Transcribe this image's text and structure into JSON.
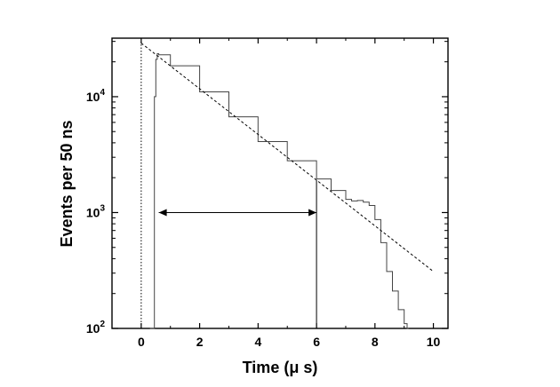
{
  "chart_data": {
    "type": "line",
    "title": "",
    "xlabel": "Time (μ s)",
    "ylabel": "Events per 50 ns",
    "xlim": [
      -1,
      10.5
    ],
    "ylim": [
      100,
      32000
    ],
    "y_scale": "log",
    "grid": false,
    "legend": "none",
    "x_ticks": [
      0,
      2,
      4,
      6,
      8,
      10
    ],
    "x_tick_labels": [
      "0",
      "2",
      "4",
      "6",
      "8",
      "10"
    ],
    "y_ticks": [
      100,
      1000,
      10000
    ],
    "y_tick_labels": [
      {
        "base": "10",
        "exp": "2"
      },
      {
        "base": "10",
        "exp": "3"
      },
      {
        "base": "10",
        "exp": "4"
      }
    ],
    "series": [
      {
        "style": "histogram",
        "x": [
          0.3,
          0.45,
          0.5,
          0.55,
          0.6,
          1.0,
          2.0,
          3.0,
          4.0,
          5.0,
          6.0,
          6.5,
          7.0,
          7.2,
          7.4,
          7.6,
          7.8,
          8.0,
          8.2,
          8.4,
          8.6,
          8.8,
          9.0,
          9.1,
          9.15
        ],
        "y": [
          100,
          10000,
          21000,
          23500,
          23000,
          18500,
          11000,
          6700,
          4100,
          2800,
          1950,
          1550,
          1300,
          1260,
          1270,
          1230,
          1150,
          870,
          550,
          310,
          210,
          145,
          110,
          100,
          100
        ]
      },
      {
        "style": "dashed-fit",
        "x": [
          0,
          10
        ],
        "y": [
          29000,
          310
        ]
      }
    ],
    "annotations": {
      "dotted_vline_x": 0,
      "solid_vline_x": 6.0,
      "arrow_x": [
        0.6,
        6.0
      ],
      "arrow_y": 1000
    },
    "colors": {
      "line": "#000000",
      "histogram": "#444444"
    }
  }
}
